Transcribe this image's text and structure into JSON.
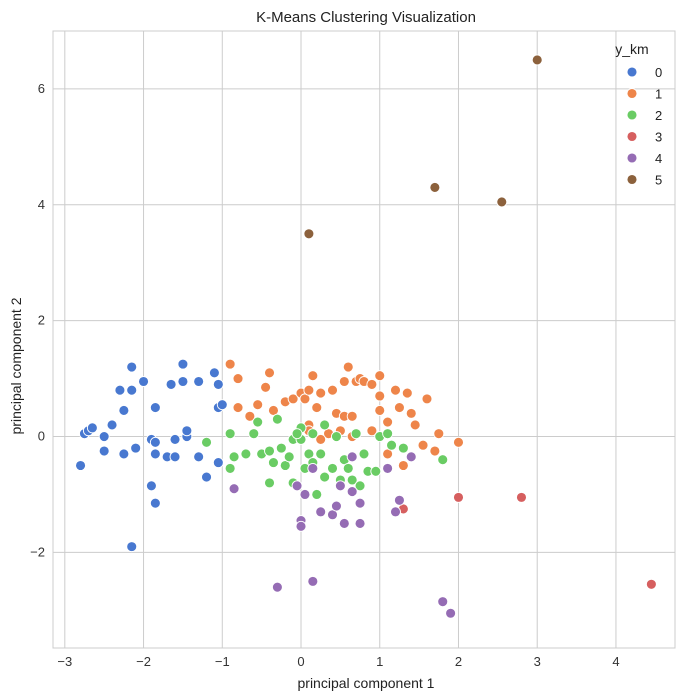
{
  "chart_data": {
    "type": "scatter",
    "title": "K-Means Clustering Visualization",
    "xlabel": "principal component 1",
    "ylabel": "principal component 2",
    "xlim": [
      -3.15,
      4.75
    ],
    "ylim": [
      -3.65,
      7.0
    ],
    "xticks": [
      -3,
      -2,
      -1,
      0,
      1,
      2,
      3,
      4
    ],
    "yticks": [
      -2,
      0,
      2,
      4,
      6
    ],
    "xtick_labels": [
      "−3",
      "−2",
      "−1",
      "0",
      "1",
      "2",
      "3",
      "4"
    ],
    "ytick_labels": [
      "−2",
      "0",
      "2",
      "4",
      "6"
    ],
    "grid": true,
    "legend": {
      "title": "y_km",
      "placement": "top-right"
    },
    "series": [
      {
        "name": "0",
        "color": "#4878d0",
        "points": [
          [
            -2.8,
            -0.5
          ],
          [
            -2.75,
            0.05
          ],
          [
            -2.7,
            0.1
          ],
          [
            -2.65,
            0.15
          ],
          [
            -2.5,
            0.0
          ],
          [
            -2.5,
            -0.25
          ],
          [
            -2.4,
            0.2
          ],
          [
            -2.3,
            0.8
          ],
          [
            -2.25,
            0.45
          ],
          [
            -2.25,
            -0.3
          ],
          [
            -2.15,
            1.2
          ],
          [
            -2.15,
            0.8
          ],
          [
            -2.1,
            -0.2
          ],
          [
            -2.15,
            -1.9
          ],
          [
            -2.0,
            0.95
          ],
          [
            -1.9,
            -0.05
          ],
          [
            -1.85,
            -0.1
          ],
          [
            -1.85,
            -0.3
          ],
          [
            -1.9,
            -0.85
          ],
          [
            -1.85,
            -1.15
          ],
          [
            -1.85,
            0.5
          ],
          [
            -1.7,
            -0.35
          ],
          [
            -1.65,
            0.9
          ],
          [
            -1.6,
            -0.35
          ],
          [
            -1.5,
            0.95
          ],
          [
            -1.5,
            1.25
          ],
          [
            -1.45,
            0.0
          ],
          [
            -1.45,
            0.1
          ],
          [
            -1.3,
            0.95
          ],
          [
            -1.3,
            -0.35
          ],
          [
            -1.2,
            -0.7
          ],
          [
            -1.1,
            1.1
          ],
          [
            -1.05,
            0.9
          ],
          [
            -1.05,
            0.5
          ],
          [
            -1.0,
            0.55
          ],
          [
            -1.05,
            -0.45
          ],
          [
            -1.6,
            -0.05
          ]
        ]
      },
      {
        "name": "1",
        "color": "#ee854a",
        "points": [
          [
            -0.9,
            1.25
          ],
          [
            -0.8,
            1.0
          ],
          [
            -0.8,
            0.5
          ],
          [
            -0.65,
            0.35
          ],
          [
            -0.55,
            0.55
          ],
          [
            -0.45,
            0.85
          ],
          [
            -0.4,
            1.1
          ],
          [
            -0.35,
            0.45
          ],
          [
            -0.2,
            0.6
          ],
          [
            -0.1,
            0.65
          ],
          [
            0.0,
            0.75
          ],
          [
            0.05,
            0.65
          ],
          [
            0.1,
            0.8
          ],
          [
            0.15,
            1.05
          ],
          [
            0.1,
            0.2
          ],
          [
            0.2,
            0.5
          ],
          [
            0.25,
            0.75
          ],
          [
            0.3,
            0.2
          ],
          [
            0.35,
            0.05
          ],
          [
            0.4,
            0.8
          ],
          [
            0.45,
            0.4
          ],
          [
            0.5,
            0.1
          ],
          [
            0.55,
            0.95
          ],
          [
            0.6,
            1.2
          ],
          [
            0.55,
            0.35
          ],
          [
            0.65,
            0.0
          ],
          [
            0.65,
            0.35
          ],
          [
            0.7,
            0.95
          ],
          [
            0.75,
            1.0
          ],
          [
            0.8,
            0.95
          ],
          [
            0.9,
            0.9
          ],
          [
            0.9,
            0.1
          ],
          [
            1.0,
            0.7
          ],
          [
            1.0,
            0.45
          ],
          [
            1.0,
            1.05
          ],
          [
            1.1,
            0.25
          ],
          [
            1.1,
            -0.3
          ],
          [
            1.2,
            0.8
          ],
          [
            1.25,
            0.5
          ],
          [
            1.3,
            -0.5
          ],
          [
            1.35,
            0.75
          ],
          [
            1.4,
            0.4
          ],
          [
            1.45,
            0.2
          ],
          [
            1.55,
            -0.15
          ],
          [
            1.6,
            0.65
          ],
          [
            1.7,
            -0.25
          ],
          [
            1.75,
            0.05
          ],
          [
            2.0,
            -0.1
          ],
          [
            0.1,
            0.1
          ],
          [
            0.25,
            -0.05
          ]
        ]
      },
      {
        "name": "2",
        "color": "#6acc64",
        "points": [
          [
            -1.2,
            -0.1
          ],
          [
            -0.9,
            0.05
          ],
          [
            -0.9,
            -0.55
          ],
          [
            -0.85,
            -0.35
          ],
          [
            -0.7,
            -0.3
          ],
          [
            -0.6,
            0.05
          ],
          [
            -0.55,
            0.25
          ],
          [
            -0.5,
            -0.3
          ],
          [
            -0.4,
            -0.25
          ],
          [
            -0.4,
            -0.8
          ],
          [
            -0.35,
            -0.45
          ],
          [
            -0.3,
            0.3
          ],
          [
            -0.25,
            -0.2
          ],
          [
            -0.2,
            -0.5
          ],
          [
            -0.15,
            -0.35
          ],
          [
            -0.1,
            -0.05
          ],
          [
            -0.1,
            -0.8
          ],
          [
            0.0,
            0.15
          ],
          [
            0.05,
            -0.55
          ],
          [
            0.1,
            -0.3
          ],
          [
            0.15,
            0.05
          ],
          [
            0.15,
            -0.45
          ],
          [
            0.2,
            -1.0
          ],
          [
            0.25,
            -0.3
          ],
          [
            0.3,
            0.2
          ],
          [
            0.4,
            -0.55
          ],
          [
            0.45,
            0.0
          ],
          [
            0.5,
            -0.75
          ],
          [
            0.55,
            -0.4
          ],
          [
            0.6,
            -0.55
          ],
          [
            0.65,
            -0.75
          ],
          [
            0.7,
            0.05
          ],
          [
            0.75,
            -0.85
          ],
          [
            0.8,
            -0.3
          ],
          [
            0.85,
            -0.6
          ],
          [
            0.95,
            -0.6
          ],
          [
            1.0,
            0.0
          ],
          [
            1.1,
            0.05
          ],
          [
            1.15,
            -0.15
          ],
          [
            1.3,
            -0.2
          ],
          [
            1.8,
            -0.4
          ],
          [
            0.0,
            -0.05
          ],
          [
            -0.05,
            0.05
          ],
          [
            0.3,
            -0.7
          ]
        ]
      },
      {
        "name": "3",
        "color": "#d65f5f",
        "points": [
          [
            1.3,
            -1.25
          ],
          [
            2.0,
            -1.05
          ],
          [
            2.8,
            -1.05
          ],
          [
            4.45,
            -2.55
          ]
        ]
      },
      {
        "name": "4",
        "color": "#956cb4",
        "points": [
          [
            -0.85,
            -0.9
          ],
          [
            -0.3,
            -2.6
          ],
          [
            0.0,
            -1.45
          ],
          [
            0.0,
            -1.55
          ],
          [
            0.05,
            -1.0
          ],
          [
            0.15,
            -0.55
          ],
          [
            0.15,
            -2.5
          ],
          [
            0.25,
            -1.3
          ],
          [
            0.4,
            -1.35
          ],
          [
            0.45,
            -1.2
          ],
          [
            0.5,
            -0.85
          ],
          [
            0.55,
            -1.5
          ],
          [
            0.65,
            -0.95
          ],
          [
            0.75,
            -1.5
          ],
          [
            0.75,
            -1.15
          ],
          [
            1.1,
            -0.55
          ],
          [
            1.2,
            -1.3
          ],
          [
            1.25,
            -1.1
          ],
          [
            1.4,
            -0.35
          ],
          [
            1.8,
            -2.85
          ],
          [
            1.9,
            -3.05
          ],
          [
            0.65,
            -0.35
          ],
          [
            -0.05,
            -0.85
          ]
        ]
      },
      {
        "name": "5",
        "color": "#8c613c",
        "points": [
          [
            0.1,
            3.5
          ],
          [
            1.7,
            4.3
          ],
          [
            2.55,
            4.05
          ],
          [
            3.0,
            6.5
          ]
        ]
      }
    ]
  }
}
